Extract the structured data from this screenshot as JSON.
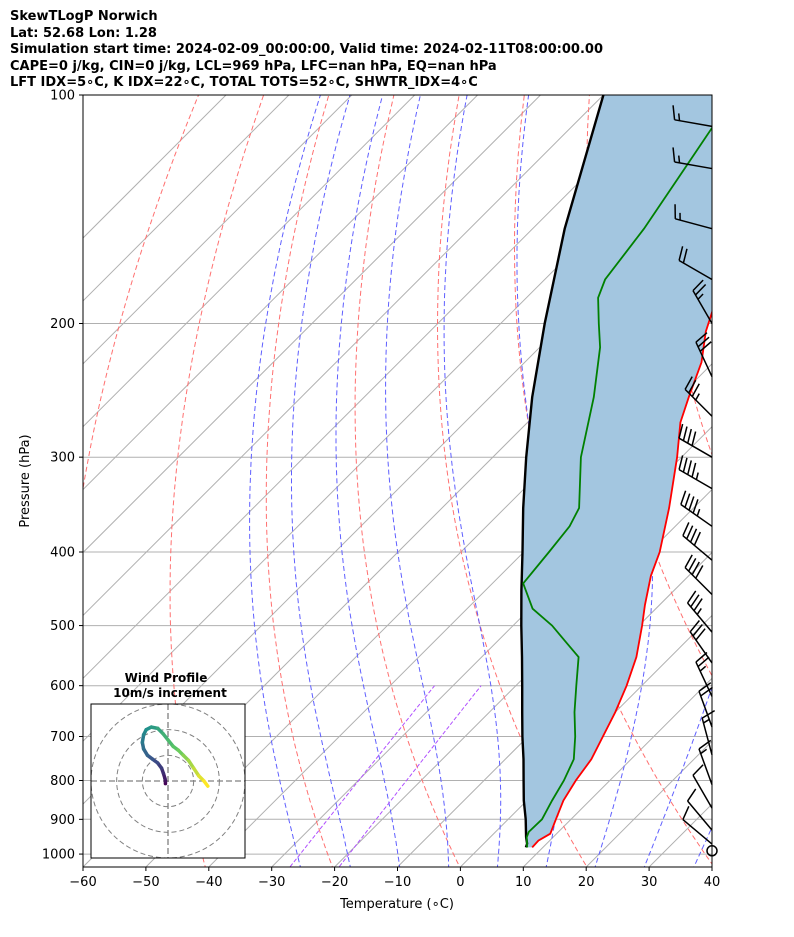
{
  "chart_data": {
    "type": "skew-t log-p",
    "title_lines": [
      "SkewTLogP Norwich",
      "Lat: 52.68   Lon: 1.28",
      "Simulation start time: 2024-02-09_00:00:00, Valid time: 2024-02-11T08:00:00.00",
      "CAPE=0 j/kg, CIN=0 j/kg, LCL=969 hPa, LFC=nan hPa, EQ=nan hPa",
      "LFT IDX=5∘C, K IDX=22∘C, TOTAL TOTS=52∘C, SHWTR_IDX=4∘C"
    ],
    "xlabel": "Temperature (∘C)",
    "ylabel": "Pressure (hPa)",
    "xlim": [
      -60,
      40
    ],
    "ylim": [
      1040,
      100
    ],
    "x_scale": "linear, skewed",
    "y_scale": "log",
    "x_ticks": [
      -60,
      -50,
      -40,
      -30,
      -20,
      -10,
      0,
      10,
      20,
      30,
      40
    ],
    "y_ticks": [
      1000,
      900,
      800,
      700,
      600,
      500,
      400,
      300,
      200,
      100
    ],
    "grid": true,
    "temperature_color": "#ff0000",
    "dewpoint_color": "#008000",
    "parcel_color": "#000000",
    "shading_color": "#a3c6e0",
    "temperature_profile": [
      {
        "p": 980,
        "t": 8.3
      },
      {
        "p": 960,
        "t": 8.2
      },
      {
        "p": 940,
        "t": 9
      },
      {
        "p": 900,
        "t": 7.6
      },
      {
        "p": 850,
        "t": 5.8
      },
      {
        "p": 800,
        "t": 4.6
      },
      {
        "p": 750,
        "t": 3.7
      },
      {
        "p": 700,
        "t": 1.9
      },
      {
        "p": 650,
        "t": 0
      },
      {
        "p": 600,
        "t": -2.4
      },
      {
        "p": 550,
        "t": -5.4
      },
      {
        "p": 500,
        "t": -9.5
      },
      {
        "p": 470,
        "t": -12.3
      },
      {
        "p": 430,
        "t": -16
      },
      {
        "p": 400,
        "t": -18.4
      },
      {
        "p": 350,
        "t": -23.9
      },
      {
        "p": 300,
        "t": -30.7
      },
      {
        "p": 270,
        "t": -35.7
      },
      {
        "p": 250,
        "t": -38.4
      },
      {
        "p": 225,
        "t": -41.9
      },
      {
        "p": 205,
        "t": -46.1
      },
      {
        "p": 190,
        "t": -48.8
      },
      {
        "p": 175,
        "t": -51
      },
      {
        "p": 160,
        "t": -52.7
      },
      {
        "p": 140,
        "t": -55.1
      },
      {
        "p": 120,
        "t": -58.5
      },
      {
        "p": 100,
        "t": -63.1
      }
    ],
    "dewpoint_profile": [
      {
        "p": 980,
        "t": 7.5
      },
      {
        "p": 950,
        "t": 5.8
      },
      {
        "p": 935,
        "t": 5.3
      },
      {
        "p": 900,
        "t": 5.4
      },
      {
        "p": 850,
        "t": 4
      },
      {
        "p": 800,
        "t": 2.7
      },
      {
        "p": 750,
        "t": 0.9
      },
      {
        "p": 700,
        "t": -2.5
      },
      {
        "p": 650,
        "t": -6.5
      },
      {
        "p": 600,
        "t": -10.4
      },
      {
        "p": 550,
        "t": -14.6
      },
      {
        "p": 525,
        "t": -19.1
      },
      {
        "p": 500,
        "t": -23.8
      },
      {
        "p": 475,
        "t": -29.6
      },
      {
        "p": 440,
        "t": -35.1
      },
      {
        "p": 400,
        "t": -36
      },
      {
        "p": 370,
        "t": -36.8
      },
      {
        "p": 350,
        "t": -38.2
      },
      {
        "p": 300,
        "t": -46
      },
      {
        "p": 250,
        "t": -53.5
      },
      {
        "p": 215,
        "t": -60.4
      },
      {
        "p": 200,
        "t": -64.4
      },
      {
        "p": 185,
        "t": -68.6
      },
      {
        "p": 175,
        "t": -70.4
      },
      {
        "p": 150,
        "t": -72.3
      },
      {
        "p": 125,
        "t": -75.4
      },
      {
        "p": 100,
        "t": -79.2
      }
    ],
    "parcel_profile": [
      {
        "p": 980,
        "t": 7.3
      },
      {
        "p": 969,
        "t": 6.9
      },
      {
        "p": 950,
        "t": 5.7
      },
      {
        "p": 900,
        "t": 2.8
      },
      {
        "p": 850,
        "t": -0.5
      },
      {
        "p": 800,
        "t": -3.7
      },
      {
        "p": 750,
        "t": -7.1
      },
      {
        "p": 700,
        "t": -10.9
      },
      {
        "p": 650,
        "t": -14.8
      },
      {
        "p": 600,
        "t": -19
      },
      {
        "p": 550,
        "t": -23.6
      },
      {
        "p": 500,
        "t": -28.7
      },
      {
        "p": 450,
        "t": -34.2
      },
      {
        "p": 400,
        "t": -40.2
      },
      {
        "p": 350,
        "t": -47.1
      },
      {
        "p": 300,
        "t": -54.7
      },
      {
        "p": 250,
        "t": -63.3
      },
      {
        "p": 200,
        "t": -73
      },
      {
        "p": 150,
        "t": -84.9
      },
      {
        "p": 100,
        "t": -100
      }
    ],
    "isotherm_color": "#b0b0b0",
    "dry_adiabat_color": "#ff7070",
    "moist_adiabat_color": "#5f5fff",
    "mixing_ratio_color": "#b050ff",
    "dry_adiabat_thetas_K": [
      210,
      230,
      250,
      270,
      290,
      310,
      330,
      350,
      370,
      390,
      410,
      430,
      450,
      470
    ],
    "moist_adiabat_start_temps_C": [
      -28,
      -20,
      -12,
      -4,
      4,
      12,
      20,
      28,
      36
    ],
    "mixing_ratio_values": [
      0.0004,
      0.0008
    ],
    "wind_barbs": [
      {
        "p": 990,
        "speed_kt": 0,
        "dir": 0
      },
      {
        "p": 970,
        "speed_kt": 13,
        "dir": 310
      },
      {
        "p": 930,
        "speed_kt": 12,
        "dir": 320
      },
      {
        "p": 870,
        "speed_kt": 14,
        "dir": 330
      },
      {
        "p": 810,
        "speed_kt": 15,
        "dir": 340
      },
      {
        "p": 740,
        "speed_kt": 17,
        "dir": 345
      },
      {
        "p": 680,
        "speed_kt": 20,
        "dir": 340
      },
      {
        "p": 620,
        "speed_kt": 25,
        "dir": 335
      },
      {
        "p": 560,
        "speed_kt": 30,
        "dir": 325
      },
      {
        "p": 510,
        "speed_kt": 35,
        "dir": 320
      },
      {
        "p": 455,
        "speed_kt": 40,
        "dir": 315
      },
      {
        "p": 410,
        "speed_kt": 40,
        "dir": 310
      },
      {
        "p": 370,
        "speed_kt": 45,
        "dir": 305
      },
      {
        "p": 330,
        "speed_kt": 45,
        "dir": 300
      },
      {
        "p": 300,
        "speed_kt": 40,
        "dir": 300
      },
      {
        "p": 265,
        "speed_kt": 35,
        "dir": 315
      },
      {
        "p": 235,
        "speed_kt": 30,
        "dir": 335
      },
      {
        "p": 200,
        "speed_kt": 25,
        "dir": 330
      },
      {
        "p": 175,
        "speed_kt": 20,
        "dir": 300
      },
      {
        "p": 150,
        "speed_kt": 15,
        "dir": 285
      },
      {
        "p": 125,
        "speed_kt": 15,
        "dir": 280
      },
      {
        "p": 110,
        "speed_kt": 15,
        "dir": 280
      }
    ],
    "hodograph": {
      "title": "Wind Profile",
      "subtitle": "10m/s increment",
      "ring_increment_ms": 10,
      "rings": 3,
      "xlim": [
        -30,
        30
      ],
      "ylim": [
        -30,
        30
      ],
      "colormap": [
        "#440154",
        "#3b528b",
        "#21918c",
        "#5ec962",
        "#fde725"
      ],
      "u": [
        -1,
        -1,
        -1.2,
        -1.8,
        -2.5,
        -4,
        -6,
        -8,
        -9.5,
        -10,
        -9.5,
        -8.5,
        -6.5,
        -4,
        -2,
        0,
        2,
        4,
        6,
        8,
        10,
        12,
        14,
        15.5
      ],
      "v": [
        -1,
        0,
        1,
        3,
        5,
        7,
        8.5,
        10,
        12.5,
        15,
        18,
        20,
        21,
        20.5,
        18.5,
        16,
        13.5,
        12,
        10,
        8,
        5,
        2,
        0,
        -2
      ]
    }
  }
}
